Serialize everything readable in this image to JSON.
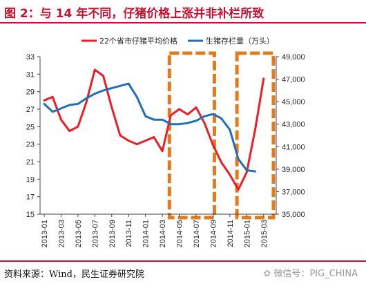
{
  "title": "图 2：与 14 年不同，仔猪价格上涨并非补栏所致",
  "source": "资料来源：Wind，民生证券研究院",
  "watermark": "微信号：PIG_CHINA",
  "colors": {
    "price": "#ee1c25",
    "stock": "#1f6fb8",
    "highlight": "#e07b1f",
    "accent": "#c8102e"
  },
  "chart_data": {
    "type": "line",
    "x": [
      "2013-01",
      "2013-02",
      "2013-03",
      "2013-04",
      "2013-05",
      "2013-06",
      "2013-07",
      "2013-08",
      "2013-09",
      "2013-10",
      "2013-11",
      "2013-12",
      "2014-01",
      "2014-02",
      "2014-03",
      "2014-04",
      "2014-05",
      "2014-06",
      "2014-07",
      "2014-08",
      "2014-09",
      "2014-10",
      "2014-11",
      "2014-12",
      "2015-01",
      "2015-02",
      "2015-03",
      "2015-04"
    ],
    "x_tick_labels": [
      "2013-01",
      "2013-03",
      "2013-05",
      "2013-07",
      "2013-09",
      "2013-11",
      "2014-01",
      "2014-03",
      "2014-05",
      "2014-07",
      "2014-09",
      "2014-11",
      "2015-01",
      "2015-03"
    ],
    "series": [
      {
        "name": "22个省市仔猪平均价格",
        "axis": "left",
        "values": [
          28.0,
          28.4,
          25.8,
          24.5,
          25.0,
          27.8,
          31.5,
          30.8,
          27.2,
          24.0,
          23.4,
          23.0,
          23.4,
          23.8,
          22.2,
          26.3,
          27.0,
          26.4,
          27.2,
          25.4,
          22.9,
          20.9,
          19.5,
          17.8,
          19.8,
          24.7,
          30.5,
          null
        ]
      },
      {
        "name": "生猪存栏量（万头）",
        "axis": "right",
        "values": [
          44800,
          44100,
          44400,
          44700,
          44800,
          45300,
          45700,
          46000,
          46200,
          46400,
          46600,
          45400,
          43700,
          43400,
          43400,
          43000,
          43000,
          43100,
          43300,
          43700,
          43900,
          43500,
          42500,
          39900,
          38900,
          38800,
          null,
          null
        ]
      }
    ],
    "y_left": {
      "lim": [
        15,
        33
      ],
      "ticks": [
        "15",
        "17",
        "19",
        "21",
        "23",
        "25",
        "27",
        "29",
        "31",
        "33"
      ]
    },
    "y_right": {
      "lim": [
        35000,
        49000
      ],
      "ticks": [
        "35,000",
        "37,000",
        "39,000",
        "41,000",
        "43,000",
        "45,000",
        "47,000",
        "49,000"
      ]
    },
    "highlight_boxes": [
      {
        "x_start": "2014-04",
        "x_end": "2014-09"
      },
      {
        "x_start": "2014-12",
        "x_end": "2015-04"
      }
    ],
    "legend": "top",
    "grid": false
  }
}
